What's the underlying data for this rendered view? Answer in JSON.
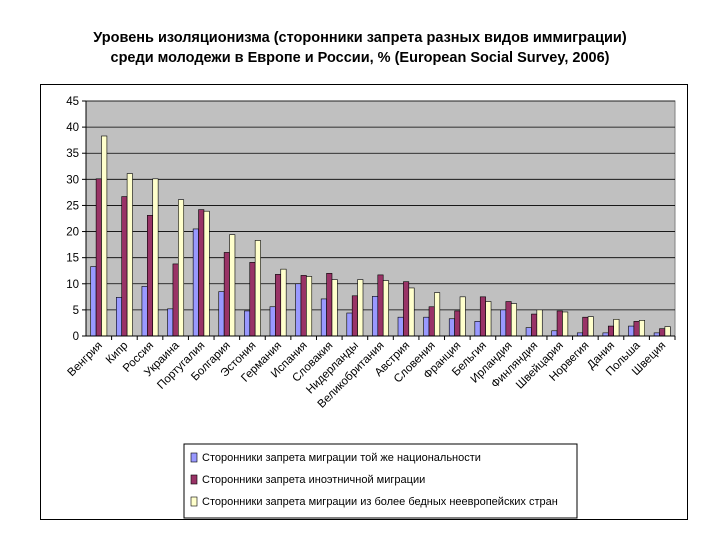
{
  "title_lines": [
    "Уровень изоляционизма (сторонники запрета разных видов иммиграции)",
    "среди молодежи в Европе и России, % (European Social Survey, 2006)"
  ],
  "colors": {
    "plot_bg": "#C0C0C0",
    "series": [
      "#9999FF",
      "#993366",
      "#FFFFCC"
    ]
  },
  "chart_data": {
    "type": "bar",
    "title": "Уровень изоляционизма (сторонники запрета разных видов иммиграции) среди молодежи в Европе и России, % (European Social Survey, 2006)",
    "xlabel": "",
    "ylabel": "",
    "ylim": [
      0,
      45
    ],
    "yticks": [
      0,
      5,
      10,
      15,
      20,
      25,
      30,
      35,
      40,
      45
    ],
    "grid": true,
    "legend_position": "bottom",
    "categories": [
      "Венгрия",
      "Кипр",
      "Россия",
      "Украина",
      "Португалия",
      "Болгария",
      "Эстония",
      "Германия",
      "Испания",
      "Словакия",
      "Нидерланды",
      "Великобритания",
      "Австрия",
      "Словения",
      "Франция",
      "Бельгия",
      "Ирландия",
      "Финляндия",
      "Швейцария",
      "Норвегия",
      "Дания",
      "Польша",
      "Швеция"
    ],
    "series": [
      {
        "name": "Сторонники запрета миграции той же национальности",
        "values": [
          13.3,
          7.4,
          9.5,
          5.2,
          20.5,
          8.5,
          4.8,
          5.6,
          10.0,
          7.1,
          4.4,
          7.6,
          3.6,
          3.6,
          3.3,
          2.8,
          5.0,
          1.6,
          1.0,
          0.6,
          0.6,
          1.9,
          0.6
        ]
      },
      {
        "name": "Сторонники запрета иноэтничной миграции",
        "values": [
          30.1,
          26.7,
          23.1,
          13.8,
          24.2,
          16.0,
          14.1,
          11.8,
          11.6,
          12.0,
          7.7,
          11.7,
          10.4,
          5.6,
          4.8,
          7.5,
          6.6,
          4.2,
          4.8,
          3.6,
          1.9,
          2.8,
          1.4
        ]
      },
      {
        "name": "Сторонники запрета миграции из более бедных неевропейских стран",
        "values": [
          38.3,
          31.1,
          30.1,
          26.1,
          23.9,
          19.4,
          18.3,
          12.8,
          11.4,
          10.8,
          10.8,
          10.6,
          9.2,
          8.3,
          7.5,
          6.6,
          6.2,
          5.0,
          4.6,
          3.7,
          3.2,
          3.0,
          1.8
        ]
      }
    ]
  }
}
